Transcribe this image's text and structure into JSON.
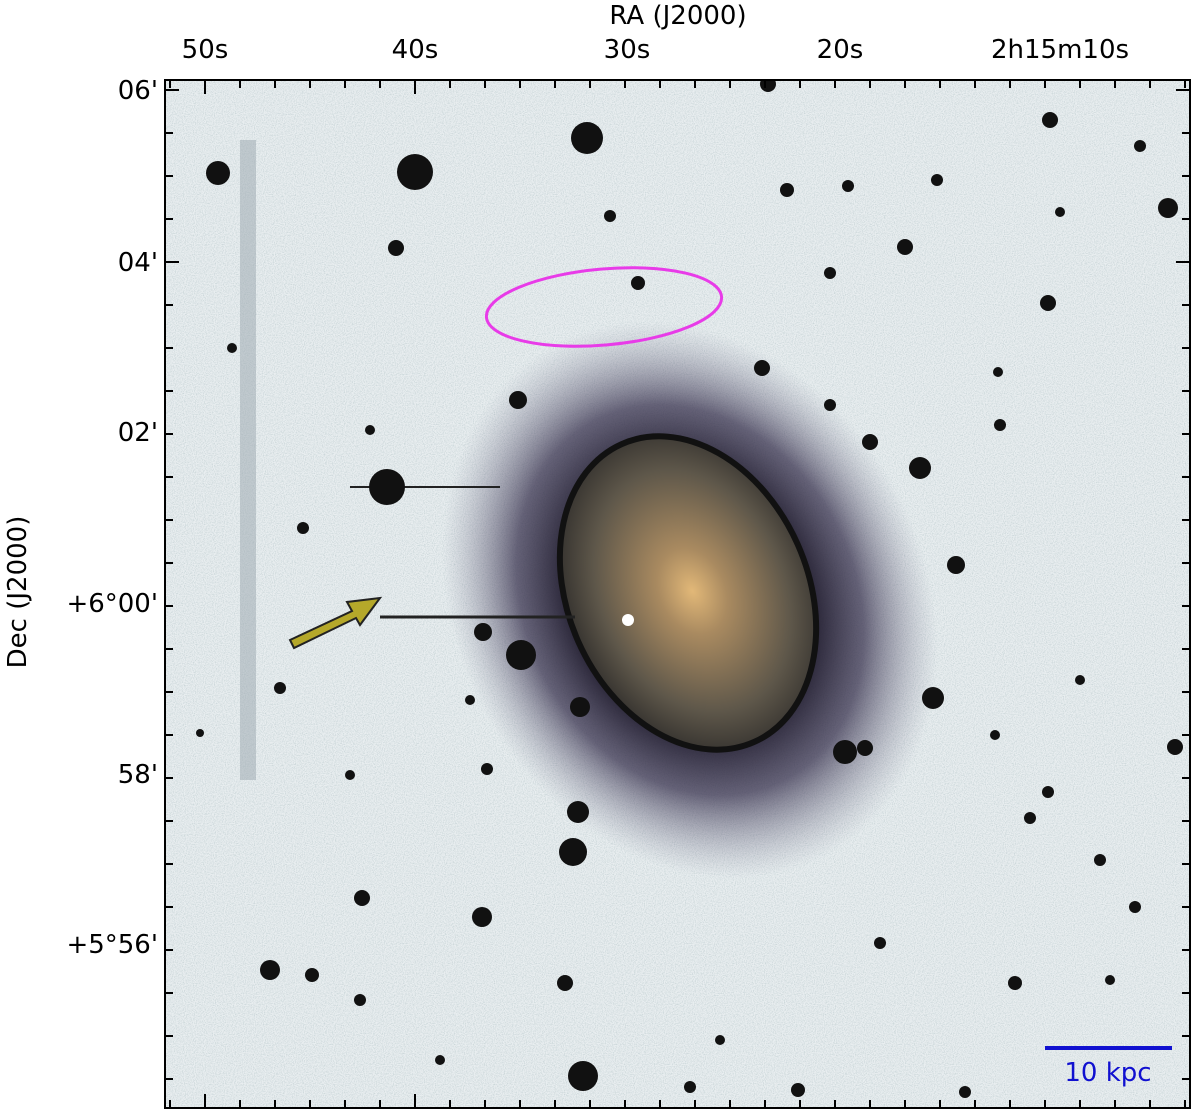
{
  "axes": {
    "x": {
      "label": "RA (J2000)",
      "ticks": [
        "50s",
        "40s",
        "30s",
        "20s",
        "2h15m10s"
      ]
    },
    "y": {
      "label": "Dec (J2000)",
      "ticks": [
        "06'",
        "04'",
        "02'",
        "+6°00'",
        "58'",
        "+5°56'"
      ]
    }
  },
  "scale_bar": {
    "label": "10 kpc"
  }
}
